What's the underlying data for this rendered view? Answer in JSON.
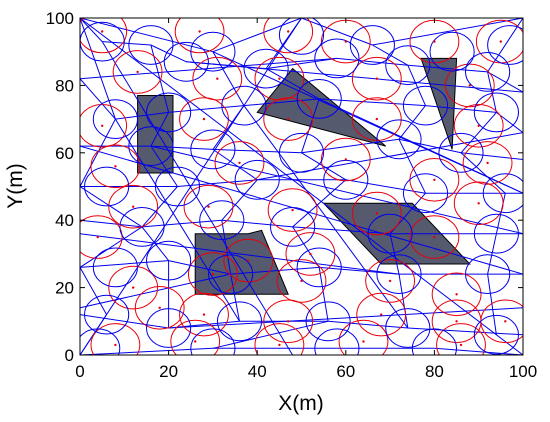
{
  "chart_data": {
    "type": "scatter",
    "title": "",
    "xlabel": "X(m)",
    "ylabel": "Y(m)",
    "xlim": [
      0,
      100
    ],
    "ylim": [
      0,
      100
    ],
    "xticks": [
      0,
      20,
      40,
      60,
      80,
      100
    ],
    "yticks": [
      0,
      20,
      40,
      60,
      80,
      100
    ],
    "grid": false,
    "colors": {
      "obstacle_fill": "#555a6e",
      "red_series": "#e8000b",
      "blue_series": "#0000ee",
      "axes": "#000000"
    },
    "obstacles": [
      {
        "name": "obstacle-1",
        "polygon": [
          [
            13,
            77
          ],
          [
            21,
            77
          ],
          [
            21,
            54
          ],
          [
            13,
            54
          ]
        ]
      },
      {
        "name": "obstacle-2",
        "polygon": [
          [
            40,
            72
          ],
          [
            48,
            85
          ],
          [
            69,
            62
          ]
        ]
      },
      {
        "name": "obstacle-3",
        "polygon": [
          [
            77,
            88
          ],
          [
            85,
            88
          ],
          [
            84,
            61
          ]
        ]
      },
      {
        "name": "obstacle-4",
        "polygon": [
          [
            26,
            36
          ],
          [
            38,
            36
          ],
          [
            41,
            37
          ],
          [
            47,
            18
          ],
          [
            26,
            18
          ]
        ]
      },
      {
        "name": "obstacle-5",
        "polygon": [
          [
            55,
            45
          ],
          [
            75,
            45
          ],
          [
            88,
            27
          ],
          [
            68,
            27
          ]
        ]
      }
    ],
    "red_circles": [
      [
        5,
        96
      ],
      [
        27,
        96
      ],
      [
        47,
        96
      ],
      [
        60,
        93
      ],
      [
        80,
        93
      ],
      [
        95,
        93
      ],
      [
        13,
        84
      ],
      [
        31,
        82
      ],
      [
        45,
        82
      ],
      [
        67,
        82
      ],
      [
        88,
        80
      ],
      [
        5,
        68
      ],
      [
        28,
        70
      ],
      [
        47,
        70
      ],
      [
        67,
        70
      ],
      [
        90,
        68
      ],
      [
        8,
        56
      ],
      [
        36,
        57
      ],
      [
        60,
        58
      ],
      [
        80,
        52
      ],
      [
        92,
        57
      ],
      [
        12,
        44
      ],
      [
        29,
        44
      ],
      [
        48,
        43
      ],
      [
        67,
        42
      ],
      [
        90,
        45
      ],
      [
        4,
        35
      ],
      [
        38,
        28
      ],
      [
        52,
        30
      ],
      [
        80,
        35
      ],
      [
        12,
        20
      ],
      [
        30,
        24
      ],
      [
        50,
        22
      ],
      [
        70,
        22
      ],
      [
        85,
        18
      ],
      [
        18,
        14
      ],
      [
        28,
        12
      ],
      [
        47,
        10
      ],
      [
        68,
        12
      ],
      [
        85,
        10
      ],
      [
        96,
        10
      ],
      [
        8,
        3
      ],
      [
        26,
        4
      ],
      [
        45,
        3
      ],
      [
        64,
        4
      ],
      [
        86,
        3
      ]
    ],
    "blue_circles": [
      [
        5,
        93
      ],
      [
        16,
        92
      ],
      [
        30,
        90
      ],
      [
        50,
        95
      ],
      [
        66,
        92
      ],
      [
        84,
        90
      ],
      [
        97,
        92
      ],
      [
        24,
        87
      ],
      [
        42,
        85
      ],
      [
        58,
        88
      ],
      [
        74,
        86
      ],
      [
        92,
        84
      ],
      [
        8,
        70
      ],
      [
        20,
        72
      ],
      [
        37,
        74
      ],
      [
        54,
        76
      ],
      [
        78,
        74
      ],
      [
        94,
        72
      ],
      [
        16,
        62
      ],
      [
        30,
        61
      ],
      [
        50,
        60
      ],
      [
        72,
        64
      ],
      [
        86,
        60
      ],
      [
        6,
        50
      ],
      [
        22,
        50
      ],
      [
        40,
        52
      ],
      [
        60,
        52
      ],
      [
        78,
        48
      ],
      [
        96,
        48
      ],
      [
        14,
        38
      ],
      [
        32,
        40
      ],
      [
        48,
        38
      ],
      [
        70,
        36
      ],
      [
        94,
        36
      ],
      [
        8,
        26
      ],
      [
        20,
        28
      ],
      [
        34,
        24
      ],
      [
        54,
        26
      ],
      [
        72,
        24
      ],
      [
        92,
        24
      ],
      [
        6,
        12
      ],
      [
        20,
        8
      ],
      [
        36,
        10
      ],
      [
        56,
        10
      ],
      [
        74,
        8
      ],
      [
        94,
        6
      ],
      [
        4,
        2
      ],
      [
        30,
        2
      ],
      [
        58,
        2
      ],
      [
        80,
        2
      ]
    ],
    "red_points": [
      [
        5,
        96
      ],
      [
        27,
        96
      ],
      [
        47,
        96
      ],
      [
        60,
        93
      ],
      [
        80,
        93
      ],
      [
        95,
        93
      ],
      [
        13,
        84
      ],
      [
        31,
        82
      ],
      [
        45,
        82
      ],
      [
        67,
        82
      ],
      [
        88,
        80
      ],
      [
        5,
        68
      ],
      [
        28,
        70
      ],
      [
        47,
        70
      ],
      [
        67,
        70
      ],
      [
        90,
        68
      ],
      [
        8,
        56
      ],
      [
        36,
        57
      ],
      [
        60,
        58
      ],
      [
        80,
        52
      ],
      [
        92,
        57
      ],
      [
        12,
        44
      ],
      [
        29,
        44
      ],
      [
        48,
        43
      ],
      [
        67,
        42
      ],
      [
        90,
        45
      ],
      [
        4,
        35
      ],
      [
        38,
        28
      ],
      [
        52,
        30
      ],
      [
        80,
        35
      ],
      [
        12,
        20
      ],
      [
        30,
        24
      ],
      [
        50,
        22
      ],
      [
        70,
        22
      ],
      [
        85,
        18
      ],
      [
        18,
        14
      ],
      [
        28,
        12
      ],
      [
        47,
        10
      ],
      [
        68,
        12
      ],
      [
        85,
        10
      ],
      [
        96,
        10
      ],
      [
        8,
        3
      ],
      [
        26,
        4
      ],
      [
        45,
        3
      ],
      [
        64,
        4
      ],
      [
        86,
        3
      ]
    ],
    "blue_edges": [
      [
        [
          0,
          100
        ],
        [
          30,
          90
        ]
      ],
      [
        [
          30,
          90
        ],
        [
          50,
          100
        ]
      ],
      [
        [
          50,
          100
        ],
        [
          66,
          92
        ]
      ],
      [
        [
          66,
          92
        ],
        [
          100,
          100
        ]
      ],
      [
        [
          0,
          100
        ],
        [
          5,
          93
        ]
      ],
      [
        [
          5,
          93
        ],
        [
          16,
          92
        ]
      ],
      [
        [
          16,
          92
        ],
        [
          24,
          87
        ]
      ],
      [
        [
          24,
          87
        ],
        [
          42,
          85
        ]
      ],
      [
        [
          42,
          85
        ],
        [
          58,
          88
        ]
      ],
      [
        [
          58,
          88
        ],
        [
          74,
          86
        ]
      ],
      [
        [
          74,
          86
        ],
        [
          92,
          84
        ]
      ],
      [
        [
          92,
          84
        ],
        [
          100,
          78
        ]
      ],
      [
        [
          0,
          82
        ],
        [
          8,
          70
        ]
      ],
      [
        [
          8,
          70
        ],
        [
          20,
          72
        ]
      ],
      [
        [
          20,
          72
        ],
        [
          37,
          74
        ]
      ],
      [
        [
          37,
          74
        ],
        [
          54,
          76
        ]
      ],
      [
        [
          54,
          76
        ],
        [
          78,
          74
        ]
      ],
      [
        [
          78,
          74
        ],
        [
          94,
          72
        ]
      ],
      [
        [
          94,
          72
        ],
        [
          100,
          66
        ]
      ],
      [
        [
          0,
          62
        ],
        [
          16,
          62
        ]
      ],
      [
        [
          16,
          62
        ],
        [
          30,
          61
        ]
      ],
      [
        [
          30,
          61
        ],
        [
          50,
          60
        ]
      ],
      [
        [
          50,
          60
        ],
        [
          72,
          64
        ]
      ],
      [
        [
          72,
          64
        ],
        [
          86,
          60
        ]
      ],
      [
        [
          86,
          60
        ],
        [
          100,
          58
        ]
      ],
      [
        [
          0,
          50
        ],
        [
          22,
          50
        ]
      ],
      [
        [
          22,
          50
        ],
        [
          40,
          52
        ]
      ],
      [
        [
          40,
          52
        ],
        [
          60,
          52
        ]
      ],
      [
        [
          60,
          52
        ],
        [
          78,
          48
        ]
      ],
      [
        [
          78,
          48
        ],
        [
          100,
          48
        ]
      ],
      [
        [
          0,
          40
        ],
        [
          14,
          38
        ]
      ],
      [
        [
          14,
          38
        ],
        [
          32,
          40
        ]
      ],
      [
        [
          32,
          40
        ],
        [
          48,
          38
        ]
      ],
      [
        [
          48,
          38
        ],
        [
          70,
          36
        ]
      ],
      [
        [
          70,
          36
        ],
        [
          100,
          36
        ]
      ],
      [
        [
          0,
          26
        ],
        [
          20,
          28
        ]
      ],
      [
        [
          20,
          28
        ],
        [
          34,
          24
        ]
      ],
      [
        [
          34,
          24
        ],
        [
          54,
          26
        ]
      ],
      [
        [
          54,
          26
        ],
        [
          72,
          24
        ]
      ],
      [
        [
          72,
          24
        ],
        [
          100,
          24
        ]
      ],
      [
        [
          0,
          12
        ],
        [
          20,
          8
        ]
      ],
      [
        [
          20,
          8
        ],
        [
          36,
          10
        ]
      ],
      [
        [
          36,
          10
        ],
        [
          56,
          10
        ]
      ],
      [
        [
          56,
          10
        ],
        [
          74,
          8
        ]
      ],
      [
        [
          74,
          8
        ],
        [
          100,
          6
        ]
      ],
      [
        [
          0,
          0
        ],
        [
          30,
          2
        ]
      ],
      [
        [
          30,
          2
        ],
        [
          58,
          2
        ]
      ],
      [
        [
          58,
          2
        ],
        [
          80,
          2
        ]
      ],
      [
        [
          80,
          2
        ],
        [
          100,
          0
        ]
      ],
      [
        [
          0,
          100
        ],
        [
          8,
          70
        ]
      ],
      [
        [
          8,
          70
        ],
        [
          0,
          50
        ]
      ],
      [
        [
          0,
          50
        ],
        [
          14,
          38
        ]
      ],
      [
        [
          14,
          38
        ],
        [
          0,
          26
        ]
      ],
      [
        [
          0,
          26
        ],
        [
          6,
          12
        ]
      ],
      [
        [
          6,
          12
        ],
        [
          0,
          0
        ]
      ],
      [
        [
          16,
          92
        ],
        [
          20,
          72
        ]
      ],
      [
        [
          20,
          72
        ],
        [
          16,
          62
        ]
      ],
      [
        [
          16,
          62
        ],
        [
          22,
          50
        ]
      ],
      [
        [
          22,
          50
        ],
        [
          14,
          38
        ]
      ],
      [
        [
          14,
          38
        ],
        [
          20,
          28
        ]
      ],
      [
        [
          20,
          28
        ],
        [
          20,
          8
        ]
      ],
      [
        [
          30,
          90
        ],
        [
          37,
          74
        ]
      ],
      [
        [
          37,
          74
        ],
        [
          30,
          61
        ]
      ],
      [
        [
          30,
          61
        ],
        [
          40,
          52
        ]
      ],
      [
        [
          40,
          52
        ],
        [
          32,
          40
        ]
      ],
      [
        [
          32,
          40
        ],
        [
          34,
          24
        ]
      ],
      [
        [
          34,
          24
        ],
        [
          36,
          10
        ]
      ],
      [
        [
          50,
          100
        ],
        [
          42,
          85
        ]
      ],
      [
        [
          42,
          85
        ],
        [
          54,
          76
        ]
      ],
      [
        [
          54,
          76
        ],
        [
          50,
          60
        ]
      ],
      [
        [
          50,
          60
        ],
        [
          60,
          52
        ]
      ],
      [
        [
          60,
          52
        ],
        [
          48,
          38
        ]
      ],
      [
        [
          48,
          38
        ],
        [
          54,
          26
        ]
      ],
      [
        [
          54,
          26
        ],
        [
          56,
          10
        ]
      ],
      [
        [
          66,
          92
        ],
        [
          74,
          86
        ]
      ],
      [
        [
          74,
          86
        ],
        [
          78,
          74
        ]
      ],
      [
        [
          78,
          74
        ],
        [
          72,
          64
        ]
      ],
      [
        [
          72,
          64
        ],
        [
          78,
          48
        ]
      ],
      [
        [
          78,
          48
        ],
        [
          70,
          36
        ]
      ],
      [
        [
          70,
          36
        ],
        [
          72,
          24
        ]
      ],
      [
        [
          72,
          24
        ],
        [
          74,
          8
        ]
      ],
      [
        [
          100,
          100
        ],
        [
          92,
          84
        ]
      ],
      [
        [
          92,
          84
        ],
        [
          94,
          72
        ]
      ],
      [
        [
          94,
          72
        ],
        [
          86,
          60
        ]
      ],
      [
        [
          86,
          60
        ],
        [
          96,
          48
        ]
      ],
      [
        [
          96,
          48
        ],
        [
          94,
          36
        ]
      ],
      [
        [
          94,
          36
        ],
        [
          92,
          24
        ]
      ],
      [
        [
          92,
          24
        ],
        [
          94,
          6
        ]
      ],
      [
        [
          0,
          100
        ],
        [
          100,
          0
        ]
      ],
      [
        [
          0,
          0
        ],
        [
          50,
          100
        ]
      ],
      [
        [
          30,
          90
        ],
        [
          100,
          48
        ]
      ],
      [
        [
          0,
          62
        ],
        [
          100,
          24
        ]
      ],
      [
        [
          5,
          93
        ],
        [
          48,
          0
        ]
      ],
      [
        [
          24,
          87
        ],
        [
          100,
          78
        ]
      ],
      [
        [
          0,
          82
        ],
        [
          58,
          88
        ]
      ],
      [
        [
          16,
          62
        ],
        [
          100,
          36
        ]
      ],
      [
        [
          0,
          36
        ],
        [
          72,
          24
        ]
      ],
      [
        [
          20,
          8
        ],
        [
          100,
          14
        ]
      ],
      [
        [
          8,
          70
        ],
        [
          36,
          10
        ]
      ],
      [
        [
          37,
          74
        ],
        [
          74,
          8
        ]
      ],
      [
        [
          54,
          76
        ],
        [
          100,
          48
        ]
      ],
      [
        [
          0,
          14
        ],
        [
          34,
          24
        ]
      ],
      [
        [
          40,
          52
        ],
        [
          100,
          66
        ]
      ],
      [
        [
          30,
          2
        ],
        [
          56,
          10
        ]
      ]
    ]
  }
}
